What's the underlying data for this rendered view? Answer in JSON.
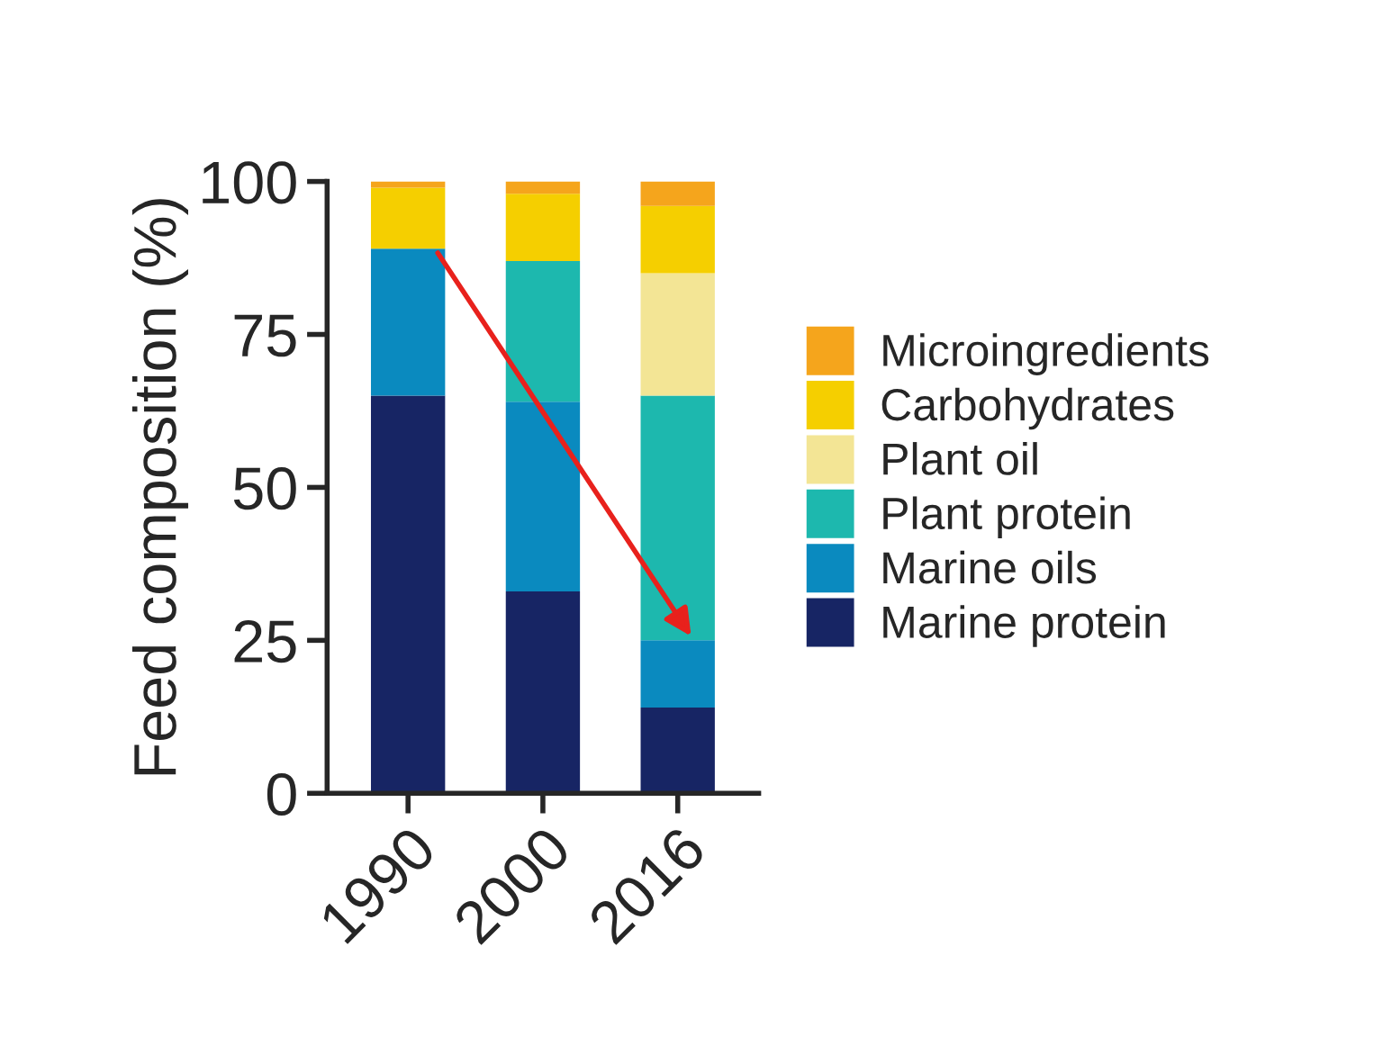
{
  "chart_data": {
    "type": "bar",
    "stacked": true,
    "ylabel": "Feed composition (%)",
    "categories": [
      "1990",
      "2000",
      "2016"
    ],
    "series": [
      {
        "name": "Marine protein",
        "color": "#172564",
        "values": [
          65,
          33,
          14
        ]
      },
      {
        "name": "Marine oils",
        "color": "#0a8abf",
        "values": [
          24,
          31,
          11
        ]
      },
      {
        "name": "Plant protein",
        "color": "#1db8ae",
        "values": [
          0,
          23,
          40
        ]
      },
      {
        "name": "Plant oil",
        "color": "#f3e595",
        "values": [
          0,
          0,
          20
        ]
      },
      {
        "name": "Carbohydrates",
        "color": "#f5cf00",
        "values": [
          10,
          11,
          11
        ]
      },
      {
        "name": "Microingredients",
        "color": "#f5a51c",
        "values": [
          1,
          2,
          4
        ]
      }
    ],
    "ylim": [
      0,
      100
    ],
    "yticks": [
      0,
      25,
      50,
      75,
      100
    ],
    "grid": false,
    "legend": "right"
  }
}
